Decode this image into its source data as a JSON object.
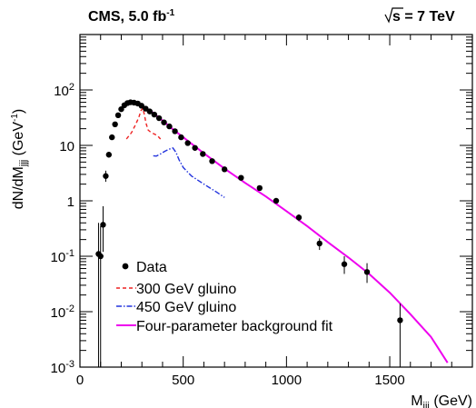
{
  "chart_data": {
    "type": "scatter",
    "header": {
      "left": "CMS, 5.0 fb",
      "left_sup": "-1",
      "right_root": "s",
      "right_rest": " = 7 TeV"
    },
    "xlabel": {
      "main": "M",
      "sub": "jjj",
      "unit": " (GeV)"
    },
    "ylabel": {
      "main": "dN/dM",
      "sub": "jjj",
      "unit_open": " (GeV",
      "unit_sup": "-1",
      "unit_close": ")"
    },
    "xlim": [
      0,
      1900
    ],
    "ylim": [
      0.001,
      1000
    ],
    "yscale": "log",
    "xticks": [
      {
        "value": 0,
        "label": "0"
      },
      {
        "value": 500,
        "label": "500"
      },
      {
        "value": 1000,
        "label": "1000"
      },
      {
        "value": 1500,
        "label": "1500"
      }
    ],
    "yticks": [
      {
        "value": 0.001,
        "base": "10",
        "exp": "-3"
      },
      {
        "value": 0.01,
        "base": "10",
        "exp": "-2"
      },
      {
        "value": 0.1,
        "base": "10",
        "exp": "-1"
      },
      {
        "value": 1,
        "base": "1",
        "exp": ""
      },
      {
        "value": 10,
        "base": "10",
        "exp": ""
      },
      {
        "value": 100,
        "base": "10",
        "exp": "2"
      }
    ],
    "legend_position": "bottom-left",
    "series": [
      {
        "name": "Data",
        "kind": "points",
        "color": "#000000",
        "points": [
          {
            "x": 90,
            "y": 0.11,
            "ylo": 0.001,
            "yhi": 0.4
          },
          {
            "x": 100,
            "y": 0.1,
            "ylo": 0.001,
            "yhi": 0.35
          },
          {
            "x": 112,
            "y": 0.37,
            "ylo": 0.12,
            "yhi": 0.8
          },
          {
            "x": 125,
            "y": 2.8,
            "ylo": 2.2,
            "yhi": 3.5
          },
          {
            "x": 140,
            "y": 6.8,
            "ylo": 6.0,
            "yhi": 7.6
          },
          {
            "x": 155,
            "y": 14,
            "ylo": 13,
            "yhi": 15
          },
          {
            "x": 170,
            "y": 24,
            "ylo": 23,
            "yhi": 25
          },
          {
            "x": 185,
            "y": 35,
            "ylo": 34,
            "yhi": 36
          },
          {
            "x": 200,
            "y": 45,
            "ylo": 44,
            "yhi": 46
          },
          {
            "x": 215,
            "y": 53,
            "ylo": 52,
            "yhi": 54
          },
          {
            "x": 230,
            "y": 58,
            "ylo": 57,
            "yhi": 59
          },
          {
            "x": 245,
            "y": 60,
            "ylo": 59,
            "yhi": 61
          },
          {
            "x": 262,
            "y": 59,
            "ylo": 58,
            "yhi": 60
          },
          {
            "x": 280,
            "y": 57,
            "ylo": 56,
            "yhi": 58
          },
          {
            "x": 298,
            "y": 52,
            "ylo": 51,
            "yhi": 53
          },
          {
            "x": 318,
            "y": 46,
            "ylo": 45,
            "yhi": 47
          },
          {
            "x": 338,
            "y": 41,
            "ylo": 40,
            "yhi": 42
          },
          {
            "x": 360,
            "y": 36,
            "ylo": 35,
            "yhi": 37
          },
          {
            "x": 383,
            "y": 31,
            "ylo": 30,
            "yhi": 32
          },
          {
            "x": 407,
            "y": 26,
            "ylo": 25,
            "yhi": 27
          },
          {
            "x": 433,
            "y": 22,
            "ylo": 21,
            "yhi": 23
          },
          {
            "x": 460,
            "y": 18,
            "ylo": 17.3,
            "yhi": 18.7
          },
          {
            "x": 490,
            "y": 14,
            "ylo": 13.4,
            "yhi": 14.6
          },
          {
            "x": 522,
            "y": 11,
            "ylo": 10.5,
            "yhi": 11.5
          },
          {
            "x": 557,
            "y": 9,
            "ylo": 8.5,
            "yhi": 9.5
          },
          {
            "x": 595,
            "y": 7.0,
            "ylo": 6.6,
            "yhi": 7.4
          },
          {
            "x": 640,
            "y": 5.2,
            "ylo": 4.9,
            "yhi": 5.5
          },
          {
            "x": 700,
            "y": 3.7,
            "ylo": 3.5,
            "yhi": 3.9
          },
          {
            "x": 780,
            "y": 2.6,
            "ylo": 2.4,
            "yhi": 2.8
          },
          {
            "x": 870,
            "y": 1.7,
            "ylo": 1.55,
            "yhi": 1.85
          },
          {
            "x": 950,
            "y": 1.0,
            "ylo": 0.9,
            "yhi": 1.1
          },
          {
            "x": 1060,
            "y": 0.5,
            "ylo": 0.43,
            "yhi": 0.57
          },
          {
            "x": 1160,
            "y": 0.17,
            "ylo": 0.13,
            "yhi": 0.21
          },
          {
            "x": 1280,
            "y": 0.072,
            "ylo": 0.048,
            "yhi": 0.1
          },
          {
            "x": 1390,
            "y": 0.052,
            "ylo": 0.033,
            "yhi": 0.075
          },
          {
            "x": 1550,
            "y": 0.007,
            "ylo": 0.001,
            "yhi": 0.014
          }
        ]
      },
      {
        "name": "300 GeV gluino",
        "kind": "line",
        "color": "#ee2222",
        "dash": "4,3",
        "x": [
          225,
          250,
          270,
          285,
          295,
          305,
          312,
          320,
          330,
          345,
          360,
          375,
          390
        ],
        "y": [
          13,
          17,
          24,
          32,
          42,
          47,
          36,
          25,
          19,
          17,
          16,
          15,
          13
        ]
      },
      {
        "name": "450 GeV gluino",
        "kind": "line",
        "color": "#2233dd",
        "dash": "6,2,1.5,2",
        "x": [
          355,
          370,
          390,
          410,
          430,
          450,
          465,
          480,
          500,
          540,
          600,
          660,
          700
        ],
        "y": [
          6.5,
          6.4,
          7.0,
          7.8,
          8.5,
          9.0,
          7.5,
          5.5,
          4.0,
          2.8,
          2.0,
          1.45,
          1.15
        ]
      },
      {
        "name": "Four-parameter background fit",
        "kind": "fit",
        "color": "#ee00ee",
        "x": [
          262,
          300,
          350,
          400,
          450,
          500,
          600,
          700,
          800,
          900,
          1000,
          1100,
          1200,
          1300,
          1400,
          1500,
          1600,
          1700,
          1780
        ],
        "y": [
          62,
          52,
          40,
          28,
          19.5,
          14,
          7.2,
          3.8,
          2.1,
          1.2,
          0.65,
          0.35,
          0.18,
          0.095,
          0.048,
          0.022,
          0.009,
          0.0035,
          0.0012
        ]
      }
    ]
  }
}
